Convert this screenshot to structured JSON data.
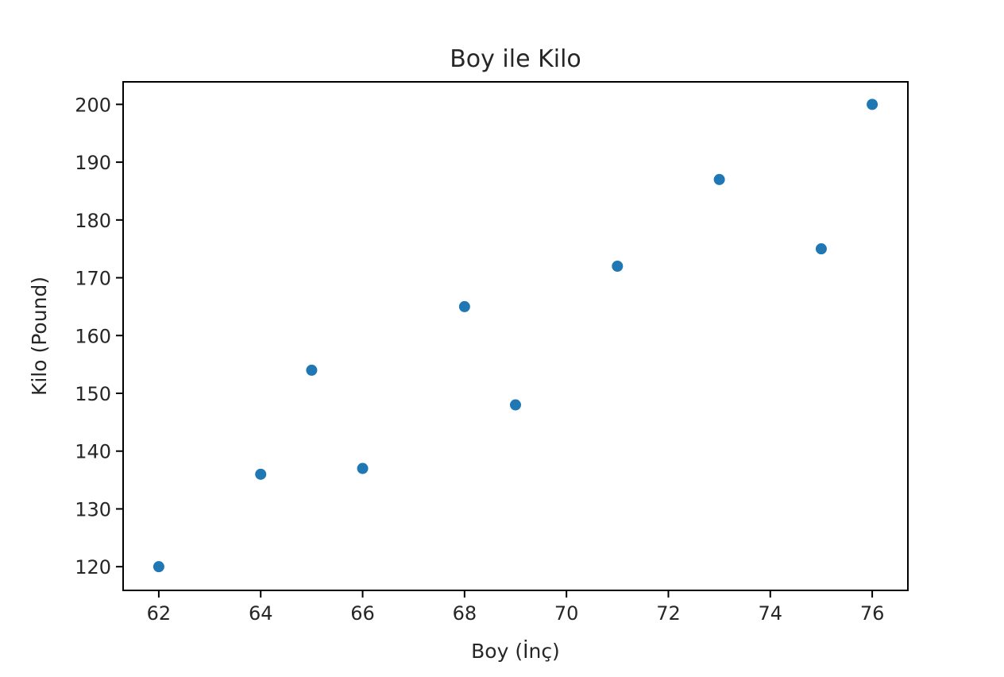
{
  "chart_data": {
    "type": "scatter",
    "title": "Boy ile Kilo",
    "xlabel": "Boy (İnç)",
    "ylabel": "Kilo (Pound)",
    "x": [
      62,
      64,
      65,
      66,
      68,
      69,
      71,
      73,
      75,
      76
    ],
    "y": [
      120,
      136,
      154,
      137,
      165,
      148,
      172,
      187,
      175,
      200
    ],
    "xlim": [
      61.3,
      76.7
    ],
    "ylim": [
      115.9,
      203.9
    ],
    "xticks": [
      62,
      64,
      66,
      68,
      70,
      72,
      74,
      76
    ],
    "yticks": [
      120,
      130,
      140,
      150,
      160,
      170,
      180,
      190,
      200
    ],
    "grid": false,
    "marker_color": "#1f77b4"
  }
}
